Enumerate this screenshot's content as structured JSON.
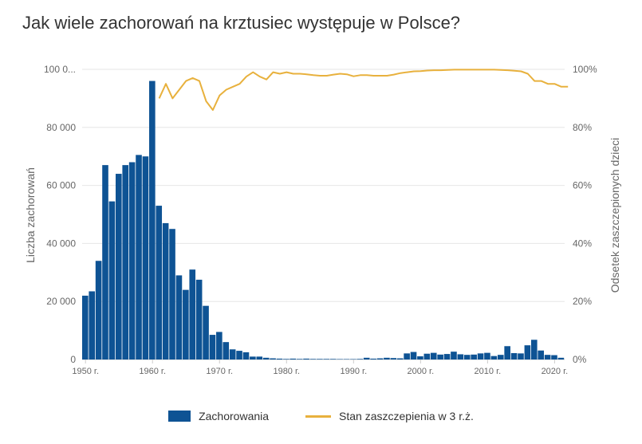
{
  "title": "Jak wiele zachorowań na krztusiec występuje w Polsce?",
  "colors": {
    "bars": "#0e5394",
    "line": "#e8b13d",
    "grid": "#e6e6e6",
    "text": "#666666"
  },
  "chart_data": {
    "type": "bar",
    "ylabel_left": "Liczba zachorowań",
    "ylabel_right": "Odsetek zaszczepionych dzieci",
    "ylim_left": [
      0,
      100000
    ],
    "ylim_right": [
      0,
      100
    ],
    "yticks_left": [
      "0",
      "20 000",
      "40 000",
      "60 000",
      "80 000",
      "100 0..."
    ],
    "yticks_right": [
      "0%",
      "20%",
      "40%",
      "60%",
      "80%",
      "100%"
    ],
    "xlim": [
      1950,
      2022
    ],
    "xticks": [
      "1950 r.",
      "1960 r.",
      "1970 r.",
      "1980 r.",
      "1990 r.",
      "2000 r.",
      "2010 r.",
      "2020 r."
    ],
    "grid": "horizontal",
    "legend_position": "bottom",
    "series": [
      {
        "name": "Zachorowania",
        "type": "bar",
        "x": [
          1950,
          1951,
          1952,
          1953,
          1954,
          1955,
          1956,
          1957,
          1958,
          1959,
          1960,
          1961,
          1962,
          1963,
          1964,
          1965,
          1966,
          1967,
          1968,
          1969,
          1970,
          1971,
          1972,
          1973,
          1974,
          1975,
          1976,
          1977,
          1978,
          1979,
          1980,
          1981,
          1982,
          1983,
          1984,
          1985,
          1986,
          1987,
          1988,
          1989,
          1990,
          1991,
          1992,
          1993,
          1994,
          1995,
          1996,
          1997,
          1998,
          1999,
          2000,
          2001,
          2002,
          2003,
          2004,
          2005,
          2006,
          2007,
          2008,
          2009,
          2010,
          2011,
          2012,
          2013,
          2014,
          2015,
          2016,
          2017,
          2018,
          2019,
          2020,
          2021
        ],
        "values": [
          22000,
          23500,
          34000,
          67000,
          54500,
          64000,
          67000,
          68000,
          70500,
          70000,
          96000,
          53000,
          47000,
          45000,
          29000,
          24000,
          31000,
          27500,
          18500,
          8500,
          9500,
          6000,
          3500,
          3000,
          2500,
          1000,
          1000,
          600,
          400,
          300,
          200,
          300,
          200,
          300,
          200,
          200,
          200,
          200,
          150,
          150,
          150,
          200,
          600,
          300,
          400,
          600,
          500,
          400,
          2100,
          2600,
          1100,
          2000,
          2300,
          1700,
          1900,
          2700,
          1800,
          1600,
          1700,
          2100,
          2300,
          1200,
          1600,
          4600,
          2200,
          2100,
          4900,
          6800,
          3100,
          1600,
          1500,
          600
        ]
      },
      {
        "name": "Stan zaszczepienia w 3 r.ż.",
        "type": "line",
        "x": [
          1961,
          1962,
          1963,
          1964,
          1965,
          1966,
          1967,
          1968,
          1969,
          1970,
          1971,
          1972,
          1973,
          1974,
          1975,
          1976,
          1977,
          1978,
          1979,
          1980,
          1981,
          1982,
          1983,
          1984,
          1985,
          1986,
          1987,
          1988,
          1989,
          1990,
          1991,
          1992,
          1993,
          1994,
          1995,
          1996,
          1997,
          1998,
          1999,
          2000,
          2001,
          2002,
          2003,
          2004,
          2005,
          2006,
          2007,
          2008,
          2009,
          2010,
          2011,
          2012,
          2013,
          2014,
          2015,
          2016,
          2017,
          2018,
          2019,
          2020,
          2021,
          2022
        ],
        "values": [
          90,
          95,
          90,
          93,
          96,
          97,
          96,
          89,
          86,
          91,
          93,
          94,
          95,
          97.5,
          99,
          97.5,
          96.5,
          99,
          98.5,
          99,
          98.5,
          98.5,
          98.3,
          98,
          97.8,
          97.8,
          98.2,
          98.5,
          98.3,
          97.6,
          98,
          98,
          97.8,
          97.8,
          97.8,
          98.2,
          98.7,
          99,
          99.3,
          99.4,
          99.6,
          99.7,
          99.7,
          99.8,
          99.9,
          99.9,
          99.9,
          99.9,
          99.9,
          99.9,
          99.9,
          99.8,
          99.7,
          99.5,
          99.3,
          98.5,
          96,
          96,
          95,
          95,
          94,
          94
        ]
      }
    ]
  },
  "legend": {
    "bars_label": "Zachorowania",
    "line_label": "Stan zaszczepienia w 3 r.ż."
  }
}
